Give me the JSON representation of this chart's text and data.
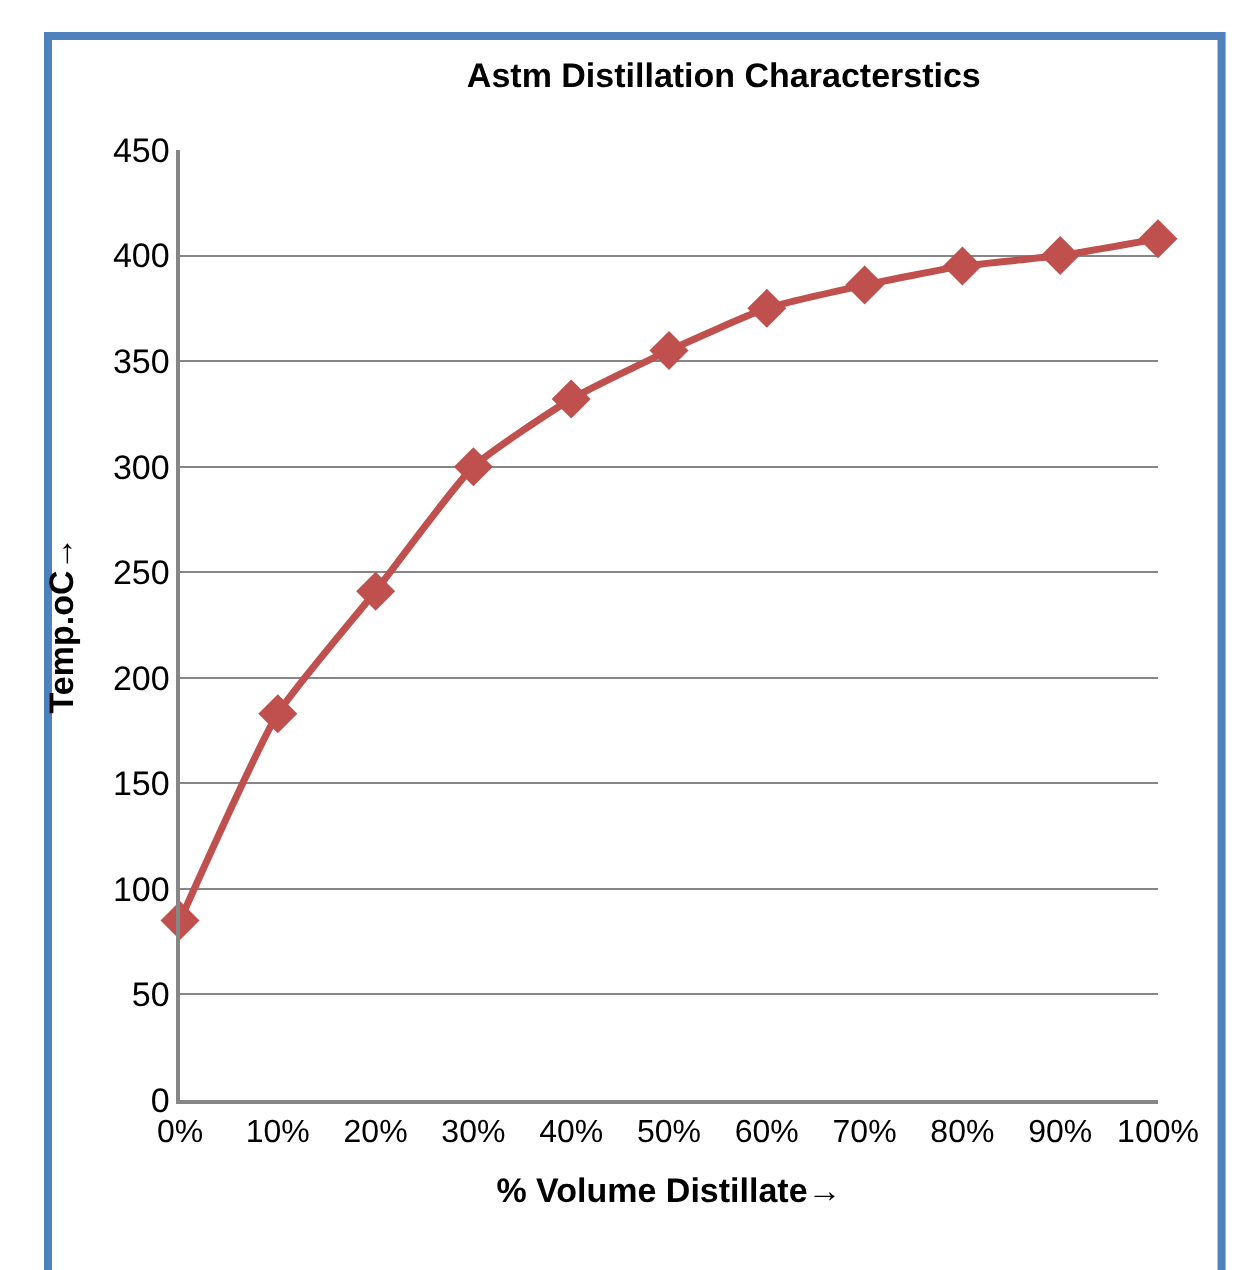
{
  "chart_data": {
    "type": "line",
    "title": "Astm Distillation Characterstics",
    "xlabel": "% Volume Distillate→",
    "ylabel": "Temp.oC→",
    "categories": [
      "0%",
      "10%",
      "20%",
      "30%",
      "40%",
      "50%",
      "60%",
      "70%",
      "80%",
      "90%",
      "100%"
    ],
    "series": [
      {
        "color": "#c0504d",
        "values": [
          85,
          183,
          241,
          300,
          332,
          355,
          375,
          386,
          395,
          400,
          408
        ]
      }
    ],
    "ylim": [
      0,
      450
    ],
    "yticks": [
      0,
      50,
      100,
      150,
      200,
      250,
      300,
      350,
      400,
      450
    ],
    "grid": "y",
    "marker": "diamond",
    "line_style": "solid"
  }
}
